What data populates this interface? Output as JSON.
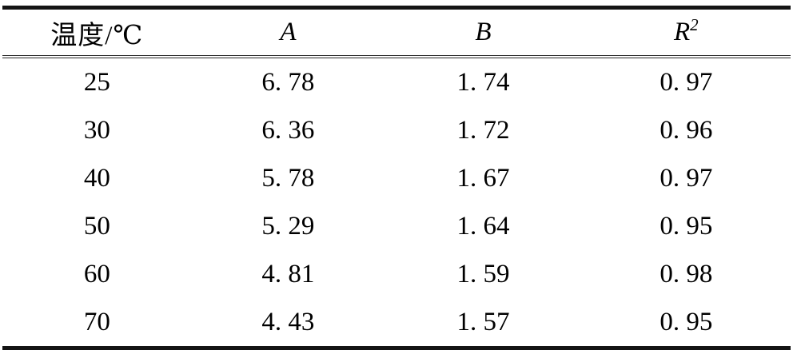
{
  "table": {
    "columns": [
      {
        "label": "温度/℃"
      },
      {
        "label": "A"
      },
      {
        "label": "B"
      },
      {
        "label": "R",
        "sup": "2"
      }
    ],
    "rows": [
      [
        "25",
        "6. 78",
        "1. 74",
        "0. 97"
      ],
      [
        "30",
        "6. 36",
        "1. 72",
        "0. 96"
      ],
      [
        "40",
        "5. 78",
        "1. 67",
        "0. 97"
      ],
      [
        "50",
        "5. 29",
        "1. 64",
        "0. 95"
      ],
      [
        "60",
        "4. 81",
        "1. 59",
        "0. 98"
      ],
      [
        "70",
        "4. 43",
        "1. 57",
        "0. 95"
      ]
    ],
    "colors": {
      "rule": "#141414",
      "text": "#000000",
      "background": "#ffffff"
    }
  },
  "chart_data": {
    "type": "table",
    "columns": [
      "温度/℃",
      "A",
      "B",
      "R2"
    ],
    "rows": [
      [
        25,
        6.78,
        1.74,
        0.97
      ],
      [
        30,
        6.36,
        1.72,
        0.96
      ],
      [
        40,
        5.78,
        1.67,
        0.97
      ],
      [
        50,
        5.29,
        1.64,
        0.95
      ],
      [
        60,
        4.81,
        1.59,
        0.98
      ],
      [
        70,
        4.43,
        1.57,
        0.95
      ]
    ]
  }
}
